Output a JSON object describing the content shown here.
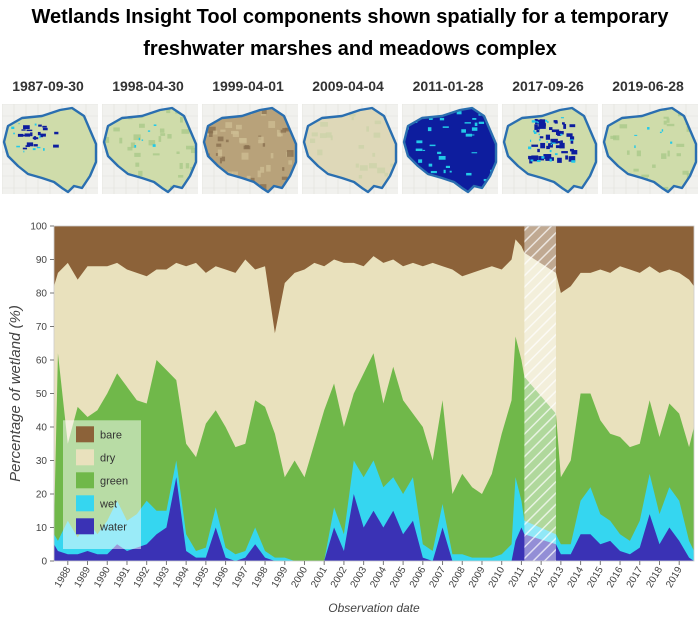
{
  "title_line1": "Wetlands Insight Tool components shown spatially for a temporary",
  "title_line2": "freshwater marshes and meadows complex",
  "thumbnails": [
    {
      "date": "1987-09-30",
      "state": "water"
    },
    {
      "date": "1998-04-30",
      "state": "green"
    },
    {
      "date": "1999-04-01",
      "state": "bare"
    },
    {
      "date": "2009-04-04",
      "state": "dry"
    },
    {
      "date": "2011-01-28",
      "state": "flooded"
    },
    {
      "date": "2017-09-26",
      "state": "partial"
    },
    {
      "date": "2019-06-28",
      "state": "green"
    }
  ],
  "colors": {
    "bare": "#8c6239",
    "dry": "#e9e1bd",
    "green": "#70b84a",
    "wet": "#35d6f0",
    "water": "#3a32b5",
    "outline": "#2a6fb0",
    "map_land": "#cfdcaa",
    "map_water": "#0d1d9e"
  },
  "chart_data": {
    "type": "area",
    "ylabel": "Percentage of wetland (%)",
    "xlabel": "Observation date",
    "xlim": [
      1987.8,
      2020.25
    ],
    "ylim": [
      0,
      100
    ],
    "yticks": [
      0,
      10,
      20,
      30,
      40,
      50,
      60,
      70,
      80,
      90,
      100
    ],
    "xticks": [
      "1988",
      "1989",
      "1990",
      "1991",
      "1992",
      "1993",
      "1994",
      "1995",
      "1996",
      "1997",
      "1998",
      "1999",
      "2000",
      "2001",
      "2002",
      "2003",
      "2004",
      "2005",
      "2006",
      "2007",
      "2008",
      "2009",
      "2010",
      "2011",
      "2012",
      "2013",
      "2014",
      "2015",
      "2016",
      "2017",
      "2018",
      "2019"
    ],
    "legend": {
      "position": "bottom-left",
      "entries": [
        "bare",
        "dry",
        "green",
        "wet",
        "water"
      ]
    },
    "gap": [
      2011.65,
      2013.25
    ],
    "x": [
      1987.8,
      1988.0,
      1988.5,
      1989.0,
      1989.5,
      1990.0,
      1990.5,
      1991.0,
      1991.5,
      1992.0,
      1992.5,
      1993.0,
      1993.5,
      1994.0,
      1994.5,
      1995.0,
      1995.5,
      1996.0,
      1996.5,
      1997.0,
      1997.5,
      1998.0,
      1998.5,
      1999.0,
      1999.5,
      2000.0,
      2000.5,
      2001.0,
      2001.5,
      2002.0,
      2002.5,
      2003.0,
      2003.5,
      2004.0,
      2004.5,
      2005.0,
      2005.5,
      2006.0,
      2006.5,
      2007.0,
      2007.5,
      2008.0,
      2008.5,
      2009.0,
      2009.5,
      2010.0,
      2010.5,
      2011.0,
      2011.2,
      2011.5,
      2011.65,
      2013.25,
      2013.5,
      2014.0,
      2014.5,
      2015.0,
      2015.5,
      2016.0,
      2016.5,
      2017.0,
      2017.5,
      2018.0,
      2018.5,
      2019.0,
      2019.5,
      2020.0,
      2020.25
    ],
    "series": [
      {
        "name": "water",
        "values": [
          5,
          3,
          2,
          2,
          3,
          2,
          2,
          5,
          3,
          4,
          5,
          8,
          10,
          25,
          3,
          1,
          1,
          10,
          1,
          0,
          1,
          5,
          1,
          0,
          0,
          0,
          0,
          0,
          0,
          10,
          3,
          20,
          10,
          15,
          10,
          15,
          8,
          12,
          1,
          0,
          10,
          0,
          0,
          0,
          0,
          0,
          0,
          0,
          6,
          10,
          8,
          5,
          2,
          2,
          8,
          8,
          5,
          6,
          3,
          2,
          4,
          14,
          5,
          10,
          6,
          1,
          0
        ]
      },
      {
        "name": "wet",
        "values": [
          8,
          6,
          12,
          7,
          12,
          8,
          12,
          18,
          12,
          14,
          18,
          15,
          15,
          30,
          8,
          3,
          4,
          16,
          4,
          2,
          3,
          10,
          3,
          1,
          1,
          0,
          0,
          0,
          0,
          16,
          8,
          30,
          25,
          30,
          22,
          25,
          20,
          25,
          5,
          3,
          17,
          2,
          2,
          1,
          1,
          1,
          2,
          5,
          25,
          18,
          12,
          8,
          5,
          5,
          18,
          22,
          14,
          12,
          8,
          6,
          12,
          26,
          14,
          22,
          18,
          6,
          3
        ]
      },
      {
        "name": "green",
        "values": [
          10,
          62,
          35,
          46,
          43,
          45,
          50,
          56,
          52,
          48,
          47,
          60,
          57,
          54,
          35,
          31,
          41,
          45,
          40,
          34,
          35,
          48,
          46,
          38,
          25,
          30,
          25,
          35,
          45,
          53,
          40,
          50,
          56,
          62,
          47,
          58,
          48,
          44,
          40,
          30,
          48,
          20,
          26,
          22,
          20,
          26,
          38,
          48,
          67,
          60,
          55,
          44,
          25,
          30,
          50,
          50,
          42,
          38,
          37,
          34,
          35,
          48,
          37,
          47,
          44,
          34,
          40
        ]
      },
      {
        "name": "dry",
        "values": [
          82,
          86,
          89,
          84,
          88,
          88,
          88,
          89,
          87,
          86,
          85,
          87,
          87,
          89,
          88,
          89,
          86,
          88,
          87,
          86,
          90,
          87,
          88,
          68,
          83,
          86,
          87,
          89,
          88,
          90,
          89,
          89,
          88,
          91,
          89,
          90,
          88,
          89,
          88,
          89,
          88,
          87,
          85,
          86,
          87,
          88,
          87,
          90,
          96,
          94,
          92,
          86,
          80,
          82,
          86,
          86,
          87,
          86,
          88,
          87,
          86,
          88,
          86,
          87,
          86,
          84,
          82
        ]
      }
    ]
  }
}
